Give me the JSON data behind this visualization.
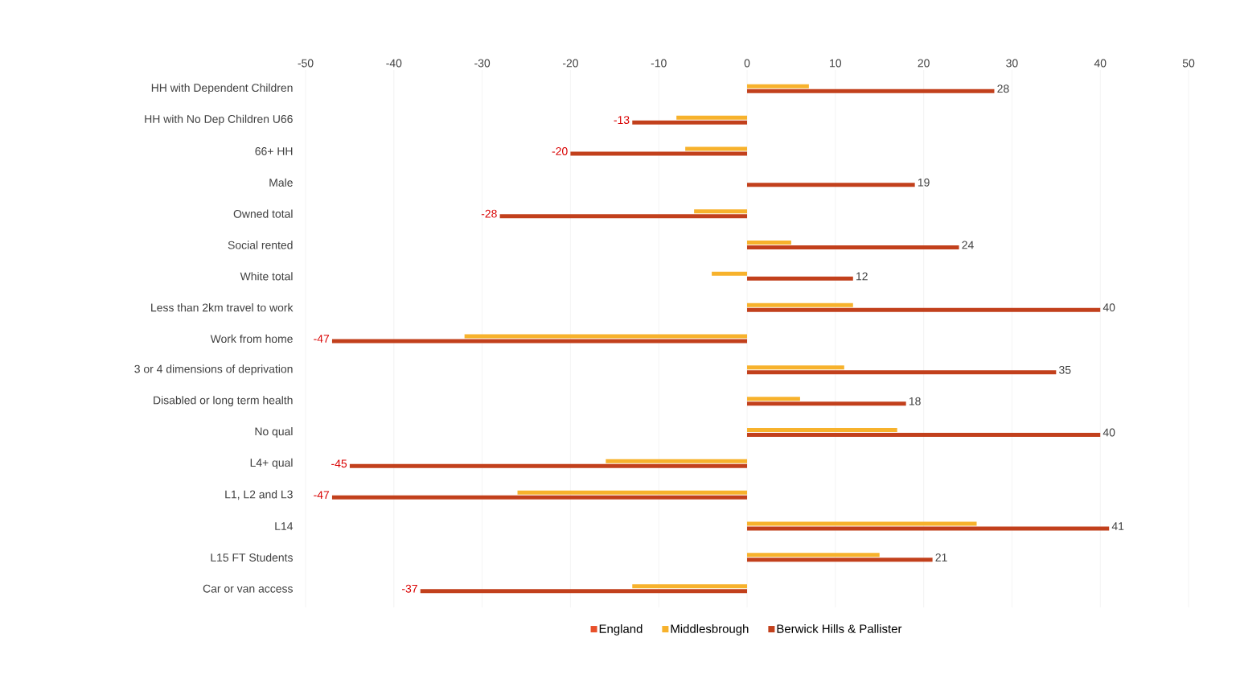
{
  "chart_data": {
    "type": "bar",
    "orientation": "horizontal",
    "categories": [
      "HH with Dependent Children",
      "HH with No Dep Children U66",
      "66+ HH",
      "Male",
      "Owned total",
      "Social rented",
      "White total",
      "Less than 2km travel to work",
      "Work from home",
      "3 or 4 dimensions of deprivation",
      "Disabled or long term health",
      "No qual",
      "L4+ qual",
      "L1, L2 and L3",
      "L14",
      "L15 FT Students",
      "Car or van access"
    ],
    "series": [
      {
        "name": "England",
        "color": "#e8502a",
        "values": [
          0,
          0,
          0,
          0,
          0,
          0,
          0,
          0,
          0,
          0,
          0,
          0,
          0,
          0,
          0,
          0,
          0
        ]
      },
      {
        "name": "Middlesbrough",
        "color": "#f7b22c",
        "values": [
          7,
          -8,
          -7,
          0,
          -6,
          5,
          -4,
          12,
          -32,
          11,
          6,
          17,
          -16,
          -26,
          26,
          15,
          -13
        ]
      },
      {
        "name": "Berwick Hills & Pallister",
        "color": "#c2401c",
        "values": [
          28,
          -13,
          -20,
          19,
          -28,
          24,
          12,
          40,
          -47,
          35,
          18,
          40,
          -45,
          -47,
          41,
          21,
          -37
        ],
        "value_labels": [
          "28",
          "-13",
          "-20",
          "19",
          "-28",
          "24",
          "12",
          "40",
          "-47",
          "35",
          "18",
          "40",
          "-45",
          "-47",
          "41",
          "21",
          "-37"
        ]
      }
    ],
    "xlim": [
      -50,
      50
    ],
    "xticks": [
      -50,
      -40,
      -30,
      -20,
      -10,
      0,
      10,
      20,
      30,
      40,
      50
    ],
    "grid": "x",
    "legend": "bottom"
  }
}
